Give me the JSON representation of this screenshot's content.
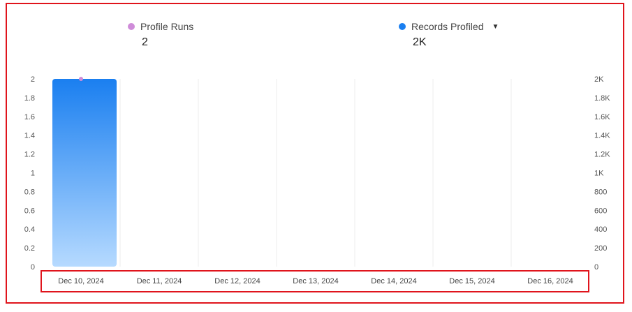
{
  "legend": {
    "profile_runs": {
      "label": "Profile Runs",
      "value": "2",
      "color": "#cf8cd9"
    },
    "records_profiled": {
      "label": "Records Profiled",
      "value": "2K",
      "color": "#1a7ff0",
      "dropdown_icon": "caret-down-icon"
    }
  },
  "chart_data": {
    "type": "bar",
    "categories": [
      "Dec 10, 2024",
      "Dec 11, 2024",
      "Dec 12, 2024",
      "Dec 13, 2024",
      "Dec 14, 2024",
      "Dec 15, 2024",
      "Dec 16, 2024"
    ],
    "series": [
      {
        "name": "Records Profiled",
        "type": "bar",
        "axis": "right",
        "values": [
          2000,
          0,
          0,
          0,
          0,
          0,
          0
        ],
        "color": "#1a7ff0"
      },
      {
        "name": "Profile Runs",
        "type": "point",
        "axis": "left",
        "values": [
          2,
          0,
          0,
          0,
          0,
          0,
          0
        ],
        "color": "#cf8cd9"
      }
    ],
    "left_axis": {
      "ticks": [
        "0",
        "0.2",
        "0.4",
        "0.6",
        "0.8",
        "1",
        "1.2",
        "1.4",
        "1.6",
        "1.8",
        "2"
      ],
      "range": [
        0,
        2
      ]
    },
    "right_axis": {
      "ticks": [
        "0",
        "200",
        "400",
        "600",
        "800",
        "1K",
        "1.2K",
        "1.4K",
        "1.6K",
        "1.8K",
        "2K"
      ],
      "range": [
        0,
        2000
      ]
    },
    "grid": "vertical"
  }
}
